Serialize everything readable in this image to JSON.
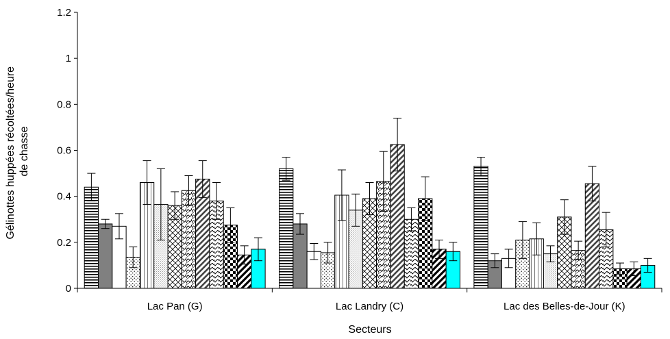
{
  "chart_data": {
    "type": "bar",
    "title": "",
    "xlabel": "Secteurs",
    "ylabel_lines": [
      "Gélinottes huppées récoltées/heure",
      "de chasse"
    ],
    "categories": [
      "Lac Pan (G)",
      "Lac Landry (C)",
      "Lac des Belles-de-Jour (K)"
    ],
    "ylim": [
      0,
      1.2
    ],
    "yticks": [
      "0",
      "0.2",
      "0.4",
      "0.6",
      "0.8",
      "1",
      "1.2"
    ],
    "grid": false,
    "legend": "none",
    "series": [
      {
        "pattern": "hlines",
        "values": [
          0.44,
          0.52,
          0.53
        ],
        "errors": [
          0.06,
          0.05,
          0.04
        ]
      },
      {
        "pattern": "gray",
        "values": [
          0.28,
          0.28,
          0.12
        ],
        "errors": [
          0.02,
          0.045,
          0.03
        ]
      },
      {
        "pattern": "white",
        "values": [
          0.27,
          0.16,
          0.13
        ],
        "errors": [
          0.055,
          0.035,
          0.04
        ]
      },
      {
        "pattern": "dots",
        "values": [
          0.135,
          0.155,
          0.21
        ],
        "errors": [
          0.045,
          0.045,
          0.08
        ]
      },
      {
        "pattern": "vlines",
        "values": [
          0.46,
          0.405,
          0.215
        ],
        "errors": [
          0.095,
          0.11,
          0.07
        ]
      },
      {
        "pattern": "fine-dots",
        "values": [
          0.365,
          0.34,
          0.15
        ],
        "errors": [
          0.155,
          0.07,
          0.035
        ]
      },
      {
        "pattern": "crosshatch",
        "values": [
          0.36,
          0.39,
          0.31
        ],
        "errors": [
          0.06,
          0.07,
          0.075
        ]
      },
      {
        "pattern": "waves",
        "values": [
          0.425,
          0.465,
          0.165
        ],
        "errors": [
          0.065,
          0.13,
          0.04
        ]
      },
      {
        "pattern": "bold-diagonal",
        "values": [
          0.475,
          0.625,
          0.455
        ],
        "errors": [
          0.08,
          0.115,
          0.075
        ]
      },
      {
        "pattern": "zigzag",
        "values": [
          0.38,
          0.3,
          0.255
        ],
        "errors": [
          0.08,
          0.05,
          0.075
        ]
      },
      {
        "pattern": "checker",
        "values": [
          0.275,
          0.39,
          0.085
        ],
        "errors": [
          0.075,
          0.095,
          0.025
        ]
      },
      {
        "pattern": "wide-diagonal",
        "values": [
          0.145,
          0.17,
          0.085
        ],
        "errors": [
          0.04,
          0.04,
          0.03
        ]
      },
      {
        "pattern": "cyan",
        "values": [
          0.17,
          0.16,
          0.1
        ],
        "errors": [
          0.05,
          0.04,
          0.03
        ]
      }
    ],
    "colors": {
      "gray": "#808080",
      "cyan": "#00ffff",
      "outline": "#000000"
    }
  }
}
